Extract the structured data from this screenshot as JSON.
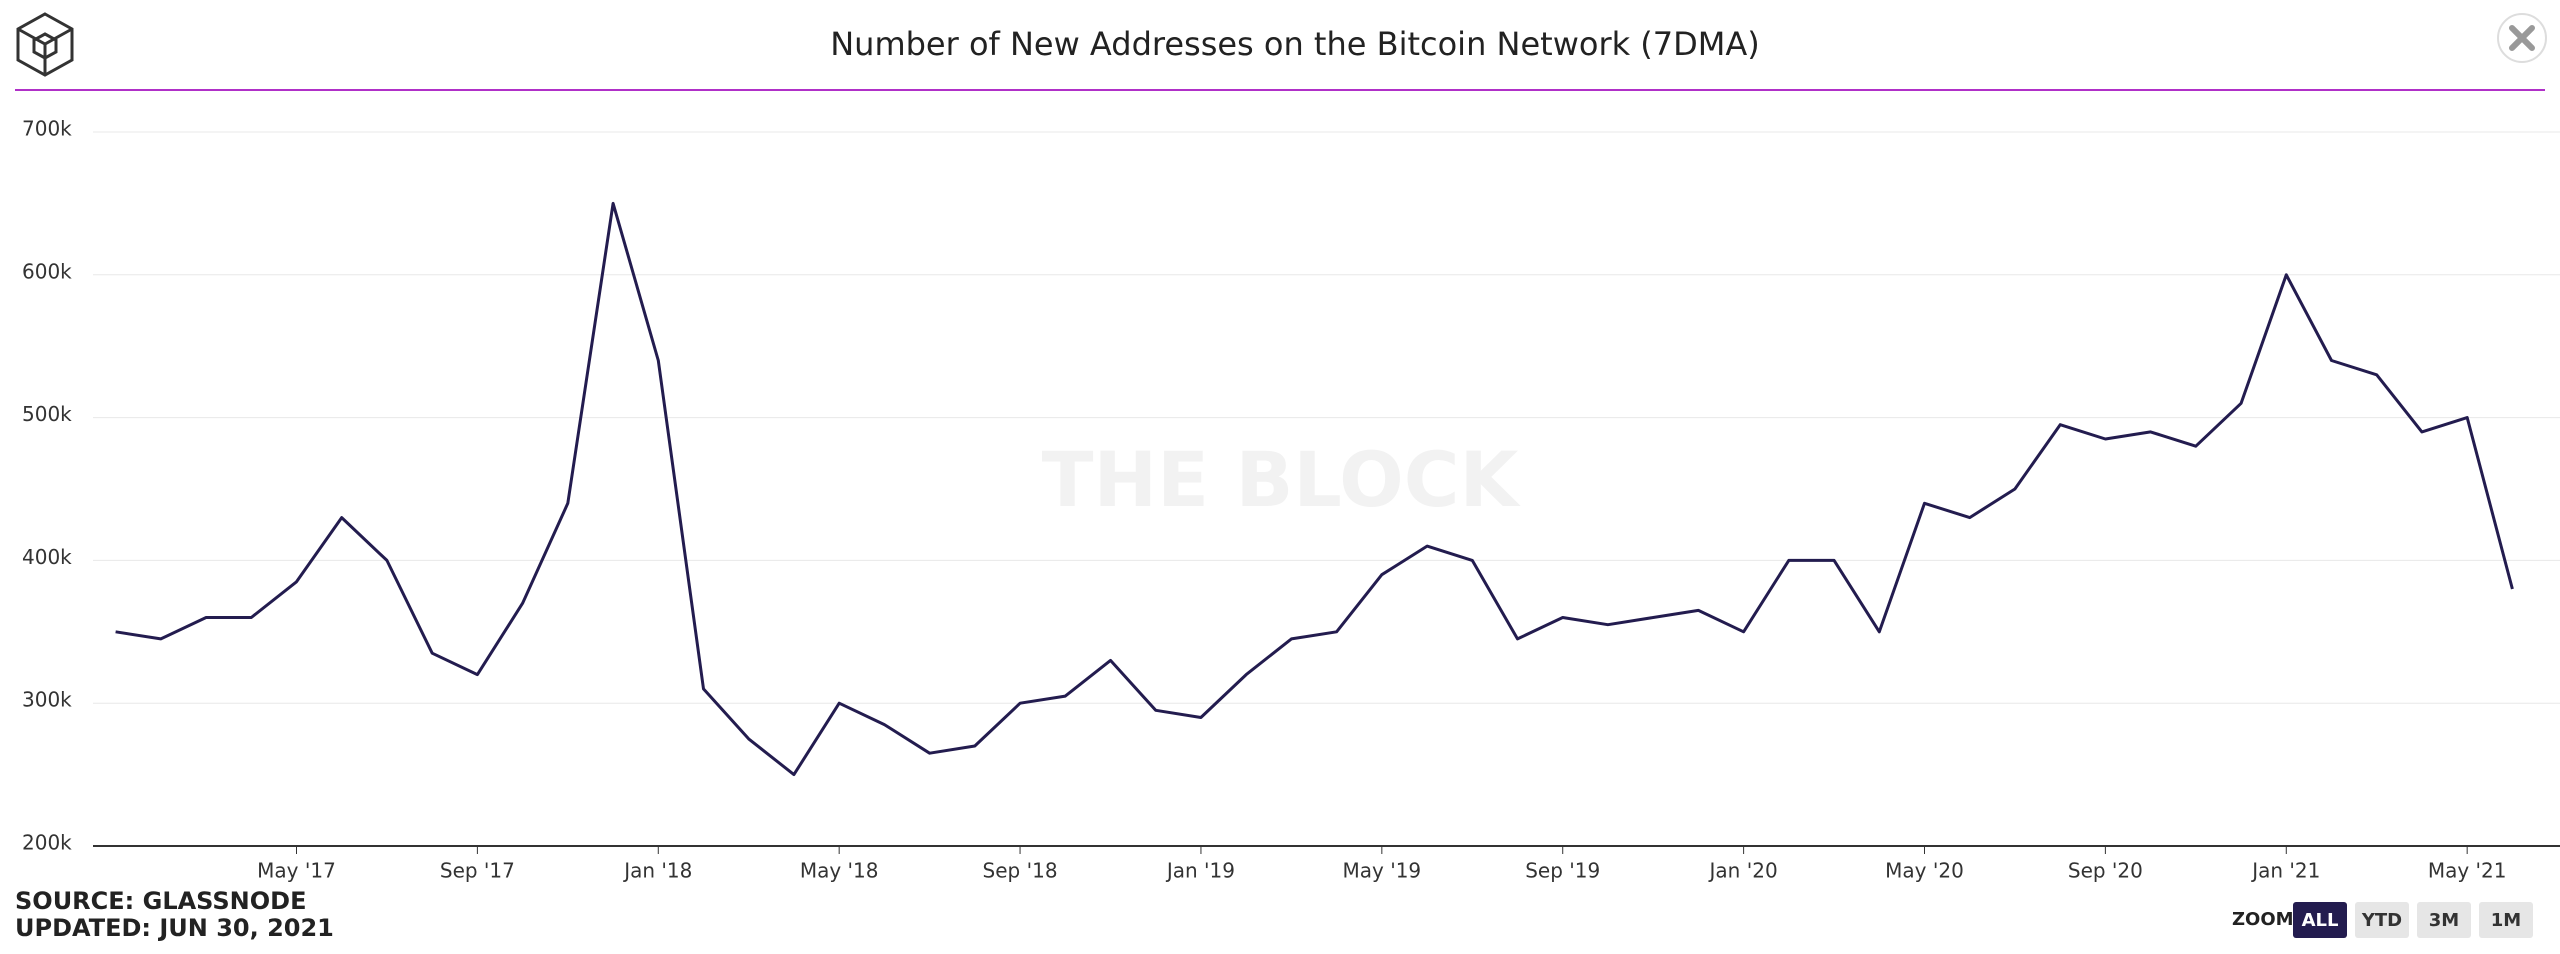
{
  "chart_data": {
    "type": "line",
    "title": "Number of New Addresses on the Bitcoin Network (7DMA)",
    "watermark": "THE BLOCK",
    "source": "SOURCE: GLASSNODE",
    "updated": "UPDATED: JUN 30, 2021",
    "zoom": {
      "label": "ZOOM",
      "buttons": [
        "ALL",
        "YTD",
        "3M",
        "1M"
      ],
      "active": "ALL"
    },
    "x": [
      "2017-01",
      "2017-02",
      "2017-03",
      "2017-04",
      "2017-05",
      "2017-06",
      "2017-07",
      "2017-08",
      "2017-09",
      "2017-10",
      "2017-11",
      "2017-12",
      "2018-01",
      "2018-02",
      "2018-03",
      "2018-04",
      "2018-05",
      "2018-06",
      "2018-07",
      "2018-08",
      "2018-09",
      "2018-10",
      "2018-11",
      "2018-12",
      "2019-01",
      "2019-02",
      "2019-03",
      "2019-04",
      "2019-05",
      "2019-06",
      "2019-07",
      "2019-08",
      "2019-09",
      "2019-10",
      "2019-11",
      "2019-12",
      "2020-01",
      "2020-02",
      "2020-03",
      "2020-04",
      "2020-05",
      "2020-06",
      "2020-07",
      "2020-08",
      "2020-09",
      "2020-10",
      "2020-11",
      "2020-12",
      "2021-01",
      "2021-02",
      "2021-03",
      "2021-04",
      "2021-05",
      "2021-06"
    ],
    "series": [
      {
        "name": "New Addresses",
        "color": "#231c4f",
        "values": [
          350000,
          345000,
          360000,
          360000,
          385000,
          430000,
          400000,
          335000,
          320000,
          370000,
          440000,
          650000,
          540000,
          310000,
          275000,
          250000,
          300000,
          285000,
          265000,
          270000,
          300000,
          305000,
          330000,
          295000,
          290000,
          320000,
          345000,
          350000,
          390000,
          410000,
          400000,
          345000,
          360000,
          355000,
          360000,
          365000,
          350000,
          400000,
          400000,
          350000,
          440000,
          430000,
          450000,
          495000,
          485000,
          490000,
          480000,
          510000,
          600000,
          540000,
          530000,
          490000,
          500000,
          380000
        ]
      }
    ],
    "xlim": [
      "2017-01",
      "2021-06"
    ],
    "xticks": [
      {
        "value": "2017-05",
        "label": "May '17"
      },
      {
        "value": "2017-09",
        "label": "Sep '17"
      },
      {
        "value": "2018-01",
        "label": "Jan '18"
      },
      {
        "value": "2018-05",
        "label": "May '18"
      },
      {
        "value": "2018-09",
        "label": "Sep '18"
      },
      {
        "value": "2019-01",
        "label": "Jan '19"
      },
      {
        "value": "2019-05",
        "label": "May '19"
      },
      {
        "value": "2019-09",
        "label": "Sep '19"
      },
      {
        "value": "2020-01",
        "label": "Jan '20"
      },
      {
        "value": "2020-05",
        "label": "May '20"
      },
      {
        "value": "2020-09",
        "label": "Sep '20"
      },
      {
        "value": "2021-01",
        "label": "Jan '21"
      },
      {
        "value": "2021-05",
        "label": "May '21"
      }
    ],
    "ylim": [
      200000,
      700000
    ],
    "yticks": [
      {
        "value": 200000,
        "label": "200k"
      },
      {
        "value": 300000,
        "label": "300k"
      },
      {
        "value": 400000,
        "label": "400k"
      },
      {
        "value": 500000,
        "label": "500k"
      },
      {
        "value": 600000,
        "label": "600k"
      },
      {
        "value": 700000,
        "label": "700k"
      }
    ],
    "grid": true
  }
}
